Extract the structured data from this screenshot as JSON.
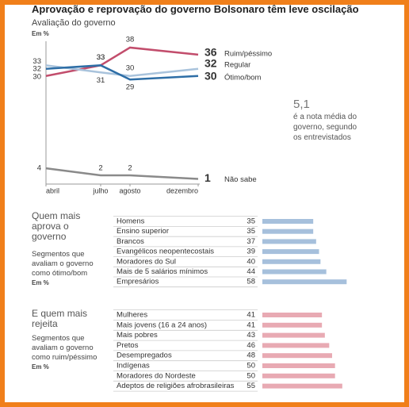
{
  "chart_data": [
    {
      "type": "line",
      "title": "Aprovação e reprovação do governo Bolsonaro têm leve oscilação",
      "subtitle": "Avaliação do governo",
      "unit_label": "Em %",
      "categories": [
        "abril",
        "julho",
        "agosto",
        "dezembro"
      ],
      "ylim": [
        0,
        40
      ],
      "series": [
        {
          "name": "Ruim/péssimo",
          "color": "#c24d6c",
          "values": [
            30,
            33,
            38,
            36
          ]
        },
        {
          "name": "Regular",
          "color": "#a9c3dc",
          "values": [
            33,
            31,
            30,
            32
          ]
        },
        {
          "name": "Ótimo/bom",
          "color": "#2e6ea6",
          "values": [
            32,
            33,
            29,
            30
          ]
        },
        {
          "name": "Não sabe",
          "color": "#8a8a8a",
          "values": [
            4,
            2,
            2,
            1
          ]
        }
      ],
      "note_value": "5,1",
      "note_text": "é a nota média do governo, segundo os entrevistados"
    },
    {
      "type": "hbar",
      "title": "Quem mais aprova o governo",
      "subtitle": "Segmentos que avaliam o governo como ótimo/bom",
      "unit_label": "Em %",
      "categories": [
        "Homens",
        "Ensino superior",
        "Brancos",
        "Evangélicos neopentecostais",
        "Moradores do Sul",
        "Mais de 5 salários mínimos",
        "Empresários"
      ],
      "values": [
        35,
        35,
        37,
        39,
        40,
        44,
        58
      ],
      "color": "#a6c0dc",
      "xlim": [
        0,
        60
      ]
    },
    {
      "type": "hbar",
      "title": "E quem mais rejeita",
      "subtitle": "Segmentos que avaliam o governo como ruim/péssimo",
      "unit_label": "Em %",
      "categories": [
        "Mulheres",
        "Mais jovens (16 a 24 anos)",
        "Mais pobres",
        "Pretos",
        "Desempregados",
        "Indígenas",
        "Moradores do Nordeste",
        "Adeptos de religiões afrobrasileiras"
      ],
      "values": [
        41,
        41,
        43,
        46,
        48,
        50,
        50,
        55
      ],
      "color": "#e8aab3",
      "xlim": [
        0,
        60
      ]
    }
  ]
}
